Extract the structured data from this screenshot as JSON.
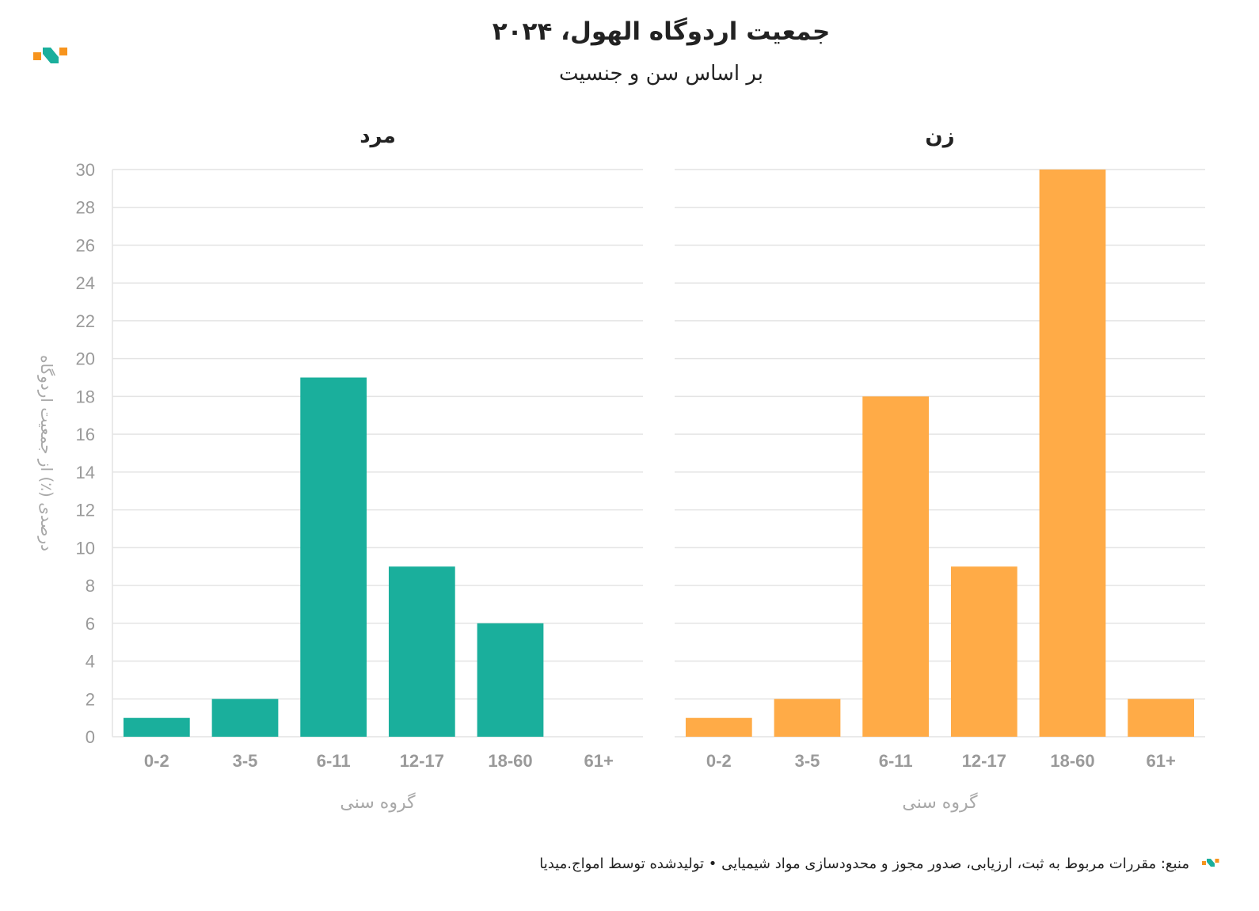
{
  "header": {
    "title": "جمعیت اردوگاه الهول، ۲۰۲۴",
    "subtitle": "بر اساس سن و جنسیت"
  },
  "footer": {
    "source": "منبع: مقررات مربوط به ثبت، ارزیابی، صدور مجوز و محدودسازی مواد شیمیایی • تولیدشده توسط امواج.میدیا"
  },
  "colors": {
    "male": "#1aaf9c",
    "female": "#ffab47",
    "logo_orange": "#f7941d",
    "logo_teal": "#1aaf9c"
  },
  "chart_data": [
    {
      "type": "bar",
      "title": "مرد",
      "categories": [
        "0-2",
        "3-5",
        "6-11",
        "12-17",
        "18-60",
        "61+"
      ],
      "values": [
        1,
        2,
        19,
        9,
        6,
        0
      ],
      "xlabel": "گروه سنی",
      "ylabel": "درصدی (٪) از جمعیت اردوگاه",
      "ylim": [
        0,
        30
      ],
      "yticks": [
        0,
        2,
        4,
        6,
        8,
        10,
        12,
        14,
        16,
        18,
        20,
        22,
        24,
        26,
        28,
        30
      ],
      "grid": true,
      "color": "#1aaf9c"
    },
    {
      "type": "bar",
      "title": "زن",
      "categories": [
        "0-2",
        "3-5",
        "6-11",
        "12-17",
        "18-60",
        "61+"
      ],
      "values": [
        1,
        2,
        18,
        9,
        30,
        2
      ],
      "xlabel": "گروه سنی",
      "ylabel": "",
      "ylim": [
        0,
        30
      ],
      "grid": true,
      "color": "#ffab47"
    }
  ]
}
